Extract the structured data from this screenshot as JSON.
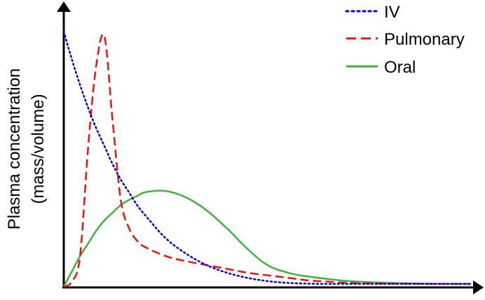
{
  "chart_data": {
    "type": "line",
    "title": "",
    "xlabel": "",
    "ylabel_line1": "Plasma concentration",
    "ylabel_line2": "(mass/volume)",
    "axis_ticks": "none",
    "grid": false,
    "legend_placement": "top-right",
    "x": [
      0,
      0.02,
      0.04,
      0.06,
      0.08,
      0.1,
      0.12,
      0.14,
      0.16,
      0.18,
      0.2,
      0.25,
      0.3,
      0.35,
      0.4,
      0.45,
      0.5,
      0.55,
      0.6,
      0.65,
      0.7,
      0.8,
      0.9,
      1.0
    ],
    "series": [
      {
        "name": "IV",
        "style": "dotted",
        "color": "#0000dd",
        "values": [
          1.0,
          0.89,
          0.79,
          0.7,
          0.62,
          0.55,
          0.48,
          0.42,
          0.37,
          0.32,
          0.28,
          0.19,
          0.13,
          0.085,
          0.055,
          0.035,
          0.022,
          0.015,
          0.012,
          0.011,
          0.011,
          0.011,
          0.011,
          0.011
        ]
      },
      {
        "name": "Pulmonary",
        "style": "dashed",
        "color": "#ee1111",
        "values": [
          0.0,
          0.02,
          0.12,
          0.55,
          0.87,
          0.98,
          0.65,
          0.34,
          0.23,
          0.18,
          0.155,
          0.12,
          0.1,
          0.085,
          0.07,
          0.055,
          0.045,
          0.035,
          0.025,
          0.02,
          0.015,
          0.012,
          0.011,
          0.011
        ]
      },
      {
        "name": "Oral",
        "style": "solid",
        "color": "#3db33d",
        "values": [
          0.0,
          0.06,
          0.12,
          0.17,
          0.22,
          0.26,
          0.29,
          0.32,
          0.34,
          0.355,
          0.37,
          0.375,
          0.35,
          0.3,
          0.23,
          0.15,
          0.085,
          0.055,
          0.04,
          0.03,
          0.022,
          0.015,
          0.012,
          0.011
        ]
      }
    ]
  },
  "legend": {
    "items": [
      {
        "label": "IV",
        "style": "dotted",
        "color": "#0000dd"
      },
      {
        "label": "Pulmonary",
        "style": "dashed",
        "color": "#ee1111"
      },
      {
        "label": "Oral",
        "style": "solid",
        "color": "#3db33d"
      }
    ]
  }
}
